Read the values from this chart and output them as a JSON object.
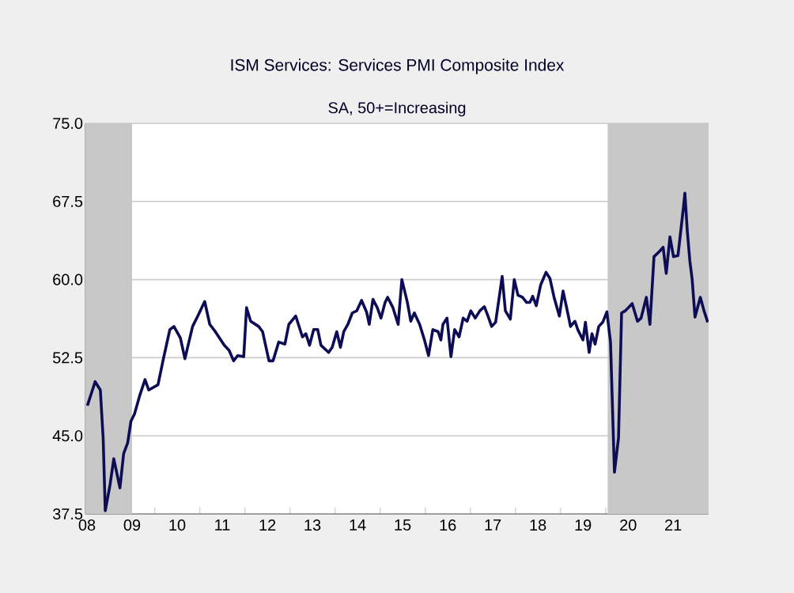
{
  "chart_data": {
    "type": "line",
    "title": "ISM Services: Services PMI Composite Index",
    "subtitle": "SA, 50+=Increasing",
    "x": [
      "2008-07-04",
      "2008-09-05",
      "2008-10-17",
      "2008-11-09",
      "2008-11-26",
      "2009-01-04",
      "2009-02-03",
      "2009-03-25",
      "2009-04-24",
      "2009-05-26",
      "2009-06-22",
      "2009-07-21",
      "2009-09-02",
      "2009-10-14",
      "2009-11-13",
      "2010-01-27",
      "2010-03-12",
      "2010-05-03",
      "2010-06-05",
      "2010-07-27",
      "2010-09-02",
      "2010-11-03",
      "2010-12-15",
      "2011-02-09",
      "2011-03-22",
      "2011-05-06",
      "2011-07-17",
      "2011-08-26",
      "2011-10-01",
      "2011-11-03",
      "2011-12-22",
      "2012-01-14",
      "2012-02-16",
      "2012-04-21",
      "2012-05-23",
      "2012-07-14",
      "2012-08-16",
      "2012-10-01",
      "2012-11-20",
      "2012-12-22",
      "2013-02-16",
      "2013-04-11",
      "2013-05-09",
      "2013-06-08",
      "2013-07-11",
      "2013-08-13",
      "2013-09-08",
      "2013-11-09",
      "2013-12-08",
      "2014-01-14",
      "2014-02-13",
      "2014-03-12",
      "2014-04-14",
      "2014-05-20",
      "2014-06-25",
      "2014-08-03",
      "2014-09-12",
      "2014-10-04",
      "2014-11-03",
      "2014-12-08",
      "2015-01-07",
      "2015-02-09",
      "2015-03-02",
      "2015-04-14",
      "2015-05-26",
      "2015-06-25",
      "2015-08-09",
      "2015-09-05",
      "2015-10-04",
      "2015-11-16",
      "2015-12-25",
      "2016-01-27",
      "2016-03-02",
      "2016-04-14",
      "2016-05-06",
      "2016-05-23",
      "2016-06-25",
      "2016-07-27",
      "2016-08-26",
      "2016-10-01",
      "2016-11-03",
      "2016-12-05",
      "2017-01-04",
      "2017-02-09",
      "2017-03-18",
      "2017-04-24",
      "2017-05-23",
      "2017-06-22",
      "2017-07-24",
      "2017-09-15",
      "2017-10-11",
      "2017-11-20",
      "2017-12-22",
      "2018-01-21",
      "2018-02-26",
      "2018-04-01",
      "2018-04-27",
      "2018-05-20",
      "2018-06-18",
      "2018-07-24",
      "2018-09-05",
      "2018-10-07",
      "2018-11-09",
      "2018-12-22",
      "2019-01-21",
      "2019-03-05",
      "2019-03-22",
      "2019-04-27",
      "2019-05-20",
      "2019-07-01",
      "2019-07-21",
      "2019-08-20",
      "2019-09-12",
      "2019-10-07",
      "2019-11-06",
      "2019-12-08",
      "2020-01-11",
      "2020-02-09",
      "2020-03-12",
      "2020-04-14",
      "2020-05-09",
      "2020-06-08",
      "2020-08-03",
      "2020-09-15",
      "2020-10-14",
      "2020-11-26",
      "2020-12-25",
      "2021-01-27",
      "2021-03-12",
      "2021-04-11",
      "2021-05-06",
      "2021-06-05",
      "2021-07-04",
      "2021-08-09",
      "2021-09-22",
      "2021-10-04",
      "2021-10-24",
      "2021-11-13",
      "2021-12-02",
      "2021-12-25",
      "2022-02-06",
      "2022-03-08",
      "2022-04-07"
    ],
    "series": [
      {
        "color": "#0d0d55",
        "values": [
          47.9,
          50.2,
          49.4,
          44.8,
          37.8,
          40.3,
          42.8,
          40.0,
          43.3,
          44.3,
          46.4,
          47.1,
          48.9,
          50.4,
          49.4,
          49.9,
          52.4,
          55.2,
          55.5,
          54.4,
          52.4,
          55.5,
          56.5,
          57.9,
          55.7,
          55.0,
          53.7,
          53.2,
          52.2,
          52.7,
          52.6,
          57.3,
          56.0,
          55.5,
          55.0,
          52.2,
          52.2,
          54.0,
          53.8,
          55.7,
          56.5,
          54.5,
          54.8,
          53.7,
          55.2,
          55.2,
          53.7,
          53.0,
          53.5,
          55.0,
          53.5,
          55.0,
          55.7,
          56.8,
          57.0,
          58.0,
          56.9,
          55.7,
          58.1,
          57.3,
          56.3,
          57.8,
          58.3,
          57.3,
          55.7,
          60.0,
          57.8,
          56.0,
          56.8,
          55.7,
          54.2,
          52.7,
          55.2,
          55.0,
          54.2,
          55.7,
          56.3,
          52.6,
          55.2,
          54.5,
          56.3,
          56.0,
          57.0,
          56.3,
          57.0,
          57.4,
          56.5,
          55.5,
          55.9,
          60.3,
          57.0,
          56.2,
          60.0,
          58.5,
          58.3,
          57.8,
          57.8,
          58.4,
          57.5,
          59.5,
          60.7,
          60.1,
          58.3,
          56.5,
          58.9,
          56.5,
          55.5,
          56.0,
          55.2,
          54.2,
          55.9,
          53.0,
          54.8,
          53.8,
          55.5,
          55.9,
          56.9,
          54.0,
          41.5,
          44.8,
          56.8,
          57.0,
          57.7,
          56.0,
          56.3,
          58.3,
          55.7,
          62.2,
          62.7,
          63.1,
          60.6,
          64.1,
          62.2,
          62.3,
          66.9,
          68.3,
          64.6,
          61.8,
          60.0,
          56.4,
          58.3,
          57.0,
          55.9
        ]
      }
    ],
    "xlim": [
      "2008-06-18",
      "2022-04-14"
    ],
    "ylim": [
      37.5,
      75
    ],
    "xticks": [
      {
        "value": "2008-07-01",
        "label": "08"
      },
      {
        "value": "2009-07-01",
        "label": "09"
      },
      {
        "value": "2010-07-01",
        "label": "10"
      },
      {
        "value": "2011-07-01",
        "label": "11"
      },
      {
        "value": "2012-07-01",
        "label": "12"
      },
      {
        "value": "2013-07-01",
        "label": "13"
      },
      {
        "value": "2014-07-01",
        "label": "14"
      },
      {
        "value": "2015-07-01",
        "label": "15"
      },
      {
        "value": "2016-07-01",
        "label": "16"
      },
      {
        "value": "2017-07-01",
        "label": "17"
      },
      {
        "value": "2018-07-01",
        "label": "18"
      },
      {
        "value": "2019-07-01",
        "label": "19"
      },
      {
        "value": "2020-07-01",
        "label": "20"
      },
      {
        "value": "2021-07-01",
        "label": "21"
      },
      {
        "value": "2009-01-01",
        "label": null
      },
      {
        "value": "2010-01-01",
        "label": null
      },
      {
        "value": "2011-01-01",
        "label": null
      },
      {
        "value": "2012-01-01",
        "label": null
      },
      {
        "value": "2013-01-01",
        "label": null
      },
      {
        "value": "2014-01-01",
        "label": null
      },
      {
        "value": "2015-01-01",
        "label": null
      },
      {
        "value": "2016-01-01",
        "label": null
      },
      {
        "value": "2017-01-01",
        "label": null
      },
      {
        "value": "2018-01-01",
        "label": null
      },
      {
        "value": "2019-01-01",
        "label": null
      },
      {
        "value": "2020-01-01",
        "label": null
      },
      {
        "value": "2021-01-01",
        "label": null
      },
      {
        "value": "2022-01-01",
        "label": null
      }
    ],
    "yticks": [
      {
        "value": 37.5,
        "label": "37.5"
      },
      {
        "value": 45,
        "label": "45.0"
      },
      {
        "value": 52.5,
        "label": "52.5"
      },
      {
        "value": 60,
        "label": "60.0"
      },
      {
        "value": 67.5,
        "label": "67.5"
      },
      {
        "value": 75,
        "label": "75.0"
      }
    ],
    "grid": "y",
    "line_style": "solid",
    "bands": [
      {
        "axis": "x",
        "from": "2008-06-18",
        "to": "2009-07-01",
        "color": "#c8c8c8"
      },
      {
        "axis": "x",
        "from": "2020-01-17",
        "to": "2022-04-14",
        "color": "#c8c8c8"
      }
    ]
  }
}
